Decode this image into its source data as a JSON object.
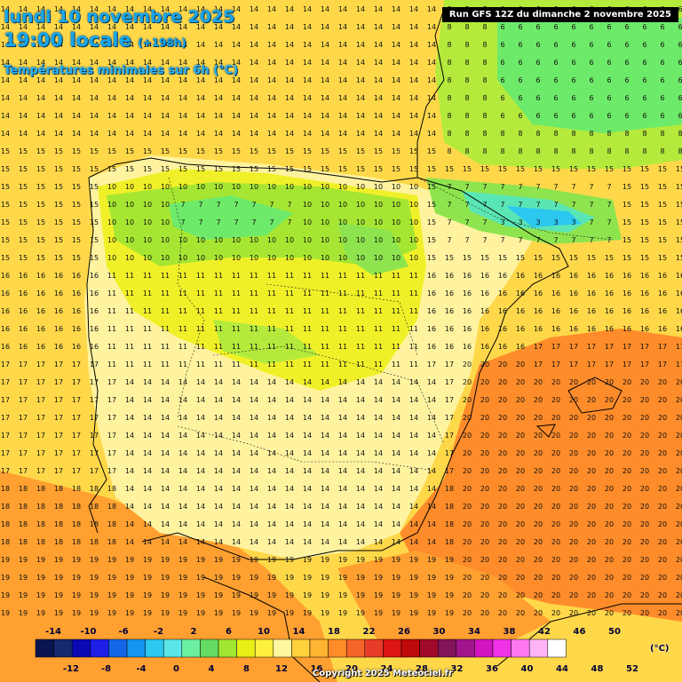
{
  "header": {
    "date": "lundi 10 novembre 2025",
    "time": "19:00 locale",
    "lead": "(+198h)",
    "subtitle": "Températures minimales sur 6h (°C)",
    "run": "Run GFS 12Z du dimanche 2 novembre 2025"
  },
  "legend": {
    "unit": "(°C)",
    "top_labels": [
      "-14",
      "-10",
      "-6",
      "-2",
      "2",
      "6",
      "10",
      "14",
      "18",
      "22",
      "26",
      "30",
      "34",
      "38",
      "42",
      "46",
      "50"
    ],
    "bottom_labels": [
      "-12",
      "-8",
      "-4",
      "0",
      "4",
      "8",
      "12",
      "16",
      "20",
      "24",
      "28",
      "32",
      "36",
      "40",
      "44",
      "48",
      "52"
    ],
    "colors": [
      "#0a1550",
      "#16286e",
      "#0a0ab4",
      "#1e1ee6",
      "#1466e6",
      "#1496f0",
      "#2cc8f0",
      "#5ae6e6",
      "#6af0a0",
      "#64dc64",
      "#a0e632",
      "#e6f014",
      "#fff03c",
      "#fff6a0",
      "#ffd23c",
      "#ffb432",
      "#ff8c28",
      "#f56428",
      "#e63c28",
      "#dc1414",
      "#be0a0a",
      "#a00a28",
      "#82145a",
      "#a0148c",
      "#d214be",
      "#f032e6",
      "#ff78f0",
      "#ffb4f5",
      "#ffffff"
    ]
  },
  "copyright": "Copyright 2025 Meteociel.fr",
  "palette": {
    "t2": "#3be69a",
    "t4": "#6eea6a",
    "t6": "#64dc64",
    "t8": "#a0e632",
    "t10": "#e6f014",
    "t12": "#fff03c",
    "t14": "#ffe060",
    "t16": "#ffc23c",
    "t18": "#ffa030",
    "t20": "#ff8528"
  }
}
